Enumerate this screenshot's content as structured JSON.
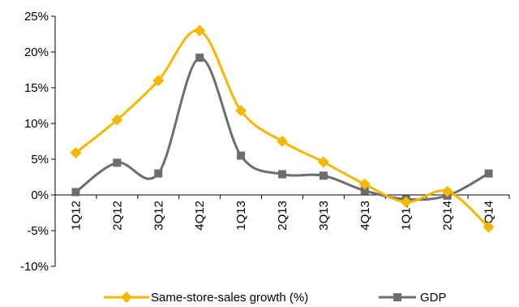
{
  "chart_data": {
    "type": "line",
    "categories": [
      "1Q12",
      "2Q12",
      "3Q12",
      "4Q12",
      "1Q13",
      "2Q13",
      "3Q13",
      "4Q13",
      "1Q14",
      "2Q14",
      "3Q14"
    ],
    "y_tick_labels": [
      "25%",
      "20%",
      "15%",
      "10%",
      "5%",
      "0%",
      "-5%",
      "-10%"
    ],
    "ylim": [
      -10,
      25
    ],
    "y_step": 5,
    "grid": false,
    "legend_position": "bottom",
    "smooth": true,
    "series": [
      {
        "name": "Same-store-sales growth (%)",
        "color": "#f5b800",
        "marker": "diamond",
        "values": [
          5.9,
          10.5,
          16.0,
          23.0,
          11.8,
          7.5,
          4.6,
          1.5,
          -1.0,
          0.5,
          -4.5
        ]
      },
      {
        "name": "GDP",
        "color": "#6d6d6d",
        "marker": "square",
        "values": [
          0.4,
          4.5,
          3.0,
          19.2,
          5.5,
          2.9,
          2.7,
          0.6,
          -0.6,
          -0.1,
          3.0
        ]
      }
    ]
  }
}
